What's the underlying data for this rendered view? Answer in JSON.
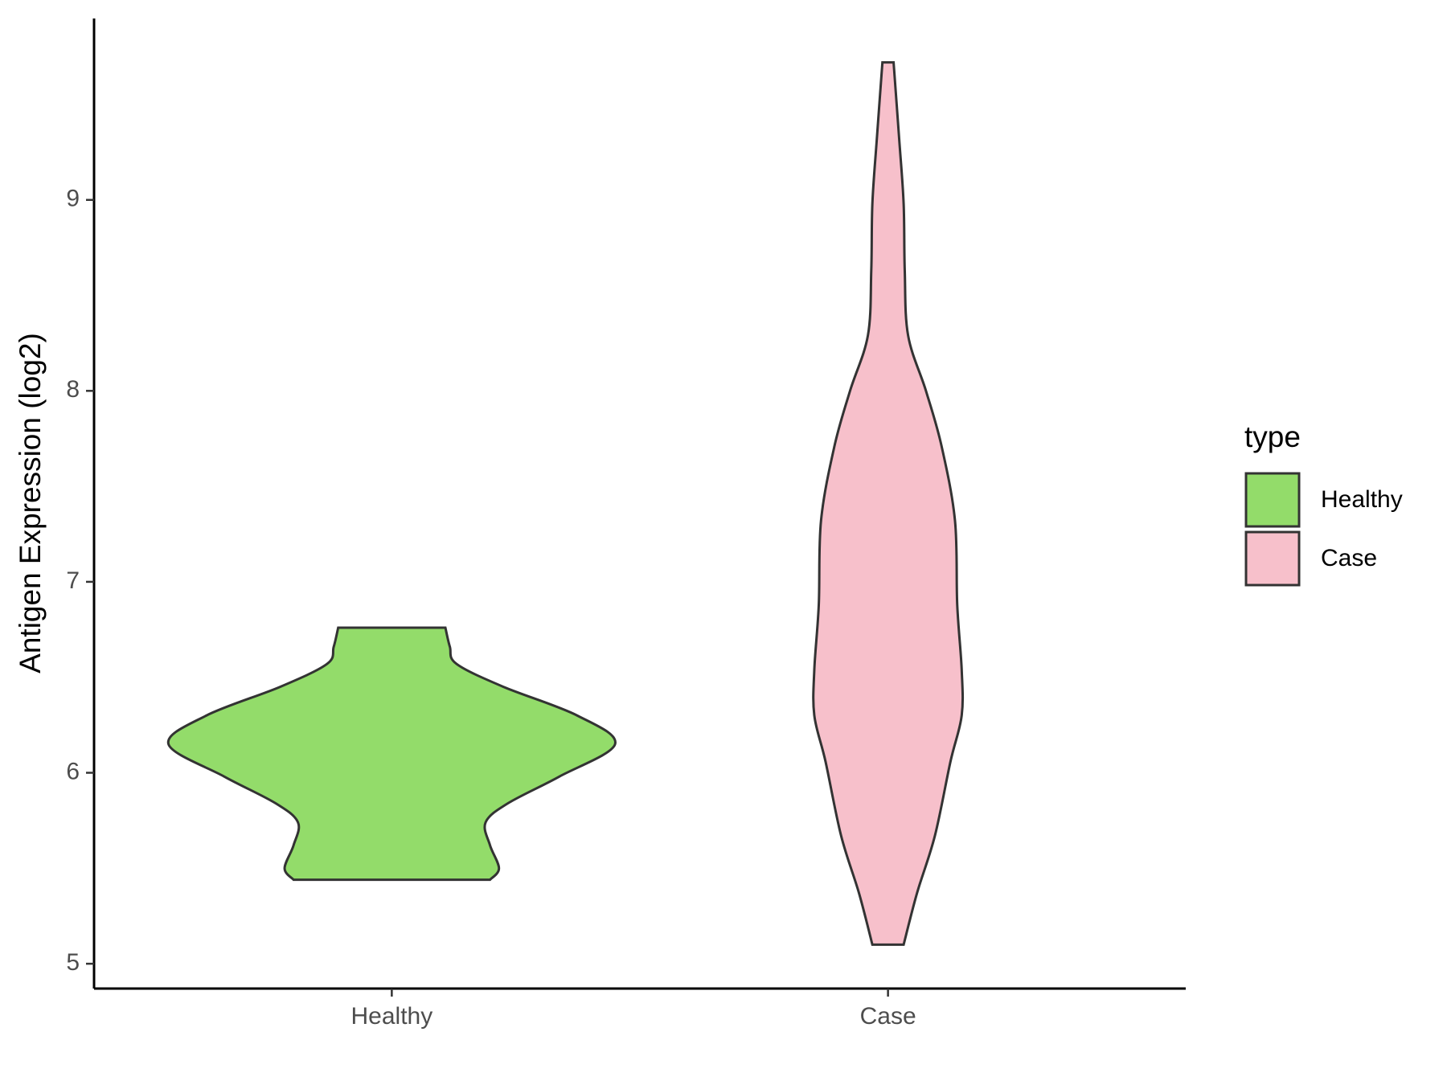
{
  "chart_data": {
    "type": "violin",
    "y_label": "Antigen Expression (log2)",
    "categories": [
      "Healthy",
      "Case"
    ],
    "legend_title": "type",
    "legend_position": "right",
    "ylim": [
      4.87,
      9.95
    ],
    "yticks": [
      5,
      6,
      7,
      8,
      9
    ],
    "series": [
      {
        "name": "Healthy",
        "color": "#93dc6a",
        "values": [
          5.44,
          5.5,
          5.62,
          5.74,
          5.84,
          5.98,
          6.15,
          6.3,
          6.45,
          6.57,
          6.66,
          6.76
        ],
        "density": [
          0.44,
          0.48,
          0.44,
          0.42,
          0.52,
          0.75,
          1,
          0.83,
          0.5,
          0.29,
          0.26,
          0.24
        ]
      },
      {
        "name": "Case",
        "color": "#f7c0cb",
        "values": [
          5.1,
          5.37,
          5.67,
          6.06,
          6.3,
          6.54,
          6.88,
          7.32,
          7.71,
          8.0,
          8.29,
          8.63,
          8.98,
          9.32,
          9.72
        ],
        "density": [
          0.07,
          0.13,
          0.21,
          0.28,
          0.33,
          0.33,
          0.31,
          0.3,
          0.24,
          0.17,
          0.09,
          0.075,
          0.07,
          0.05,
          0.025
        ]
      }
    ]
  }
}
